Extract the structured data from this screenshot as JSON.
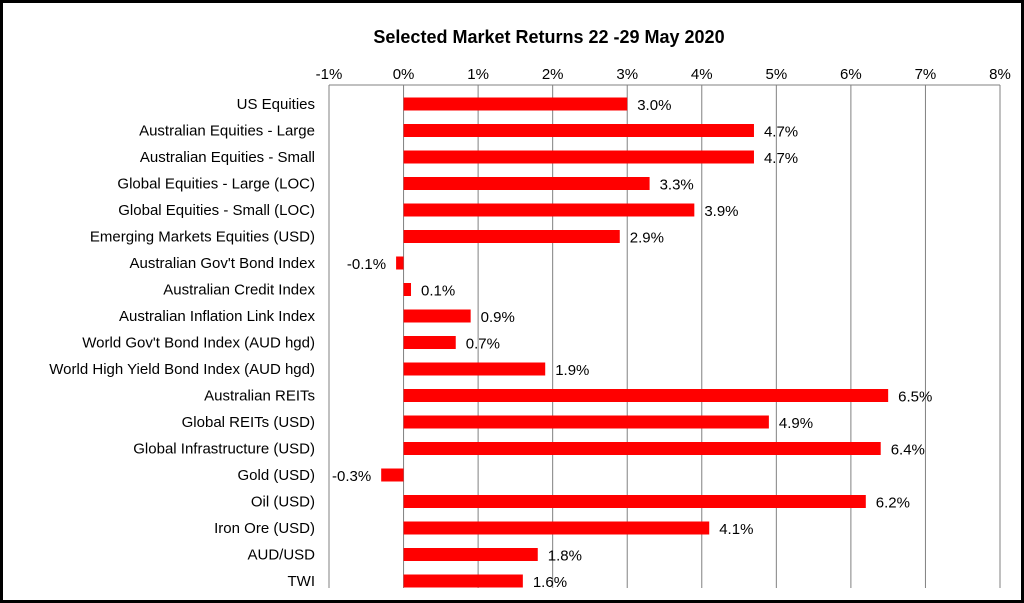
{
  "chart_data": {
    "type": "bar",
    "orientation": "horizontal",
    "title": "Selected Market Returns 22 -29 May 2020",
    "xlabel": "",
    "ylabel": "",
    "xlim": [
      -1,
      8
    ],
    "ticks": [
      -1,
      0,
      1,
      2,
      3,
      4,
      5,
      6,
      7,
      8
    ],
    "tick_labels": [
      "-1%",
      "0%",
      "1%",
      "2%",
      "3%",
      "4%",
      "5%",
      "6%",
      "7%",
      "8%"
    ],
    "tick_position": "top",
    "grid": true,
    "legend": "none",
    "bar_color": "#ff0000",
    "categories": [
      "US Equities",
      "Australian Equities - Large",
      "Australian Equities - Small",
      "Global Equities - Large (LOC)",
      "Global Equities - Small (LOC)",
      "Emerging Markets Equities (USD)",
      "Australian Gov't Bond Index",
      "Australian Credit Index",
      "Australian Inflation Link Index",
      "World Gov't Bond Index (AUD hgd)",
      "World High Yield Bond Index (AUD hgd)",
      "Australian REITs",
      "Global REITs (USD)",
      "Global Infrastructure (USD)",
      "Gold (USD)",
      "Oil (USD)",
      "Iron Ore (USD)",
      "AUD/USD",
      "TWI"
    ],
    "values": [
      3.0,
      4.7,
      4.7,
      3.3,
      3.9,
      2.9,
      -0.1,
      0.1,
      0.9,
      0.7,
      1.9,
      6.5,
      4.9,
      6.4,
      -0.3,
      6.2,
      4.1,
      1.8,
      1.6
    ],
    "value_labels": [
      "3.0%",
      "4.7%",
      "4.7%",
      "3.3%",
      "3.9%",
      "2.9%",
      "-0.1%",
      "0.1%",
      "0.9%",
      "0.7%",
      "1.9%",
      "6.5%",
      "4.9%",
      "6.4%",
      "-0.3%",
      "6.2%",
      "4.1%",
      "1.8%",
      "1.6%"
    ]
  }
}
